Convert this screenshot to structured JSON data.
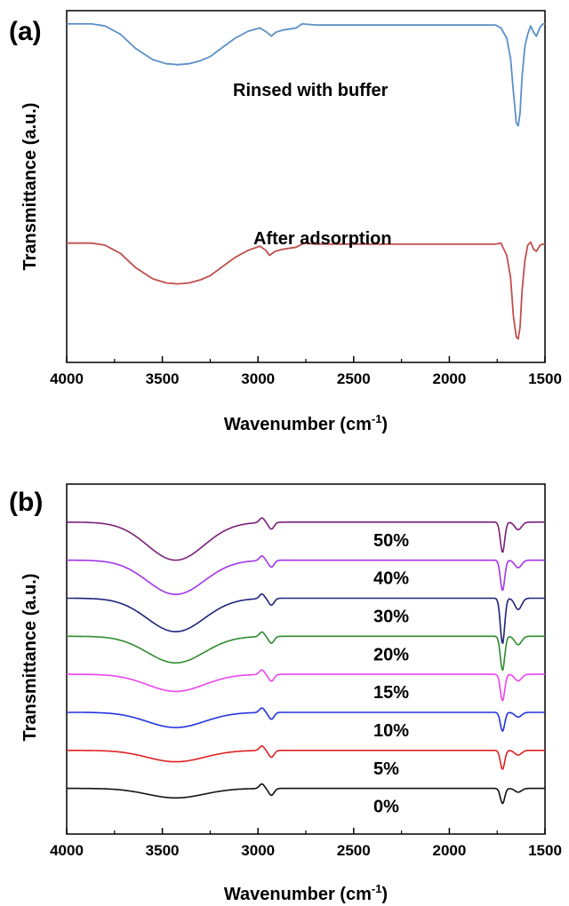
{
  "chart_data": [
    {
      "type": "line",
      "panel_label": "(a)",
      "xlabel": "Wavenumber (cm",
      "xlabel_sup": "-1",
      "xlabel_close": ")",
      "ylabel": "Transmittance (a.u.)",
      "xlim": [
        4000,
        1500
      ],
      "x_reversed": true,
      "xticks": [
        "4000",
        "3500",
        "3000",
        "2500",
        "2000",
        "1500"
      ],
      "yticks": [],
      "grid": false,
      "legend": "none",
      "series": [
        {
          "name": "Rinsed with buffer",
          "color": "#5b8fc7",
          "offset": 2.15,
          "points": [
            [
              4000,
              0.82
            ],
            [
              3870,
              0.82
            ],
            [
              3800,
              0.8
            ],
            [
              3720,
              0.72
            ],
            [
              3640,
              0.58
            ],
            [
              3550,
              0.47
            ],
            [
              3480,
              0.43
            ],
            [
              3420,
              0.42
            ],
            [
              3360,
              0.43
            ],
            [
              3300,
              0.46
            ],
            [
              3250,
              0.5
            ],
            [
              3200,
              0.57
            ],
            [
              3120,
              0.68
            ],
            [
              3050,
              0.75
            ],
            [
              2990,
              0.78
            ],
            [
              2955,
              0.74
            ],
            [
              2930,
              0.7
            ],
            [
              2905,
              0.74
            ],
            [
              2870,
              0.76
            ],
            [
              2800,
              0.78
            ],
            [
              2770,
              0.82
            ],
            [
              2700,
              0.81
            ],
            [
              2000,
              0.81
            ],
            [
              1760,
              0.81
            ],
            [
              1730,
              0.78
            ],
            [
              1700,
              0.68
            ],
            [
              1680,
              0.48
            ],
            [
              1665,
              0.15
            ],
            [
              1650,
              -0.15
            ],
            [
              1640,
              -0.18
            ],
            [
              1630,
              -0.05
            ],
            [
              1620,
              0.3
            ],
            [
              1605,
              0.6
            ],
            [
              1590,
              0.72
            ],
            [
              1575,
              0.8
            ],
            [
              1560,
              0.74
            ],
            [
              1545,
              0.7
            ],
            [
              1525,
              0.79
            ],
            [
              1510,
              0.82
            ],
            [
              1500,
              0.82
            ]
          ]
        },
        {
          "name": "After adsorption",
          "color": "#c0504d",
          "offset": 0.0,
          "points": [
            [
              4000,
              0.82
            ],
            [
              3870,
              0.82
            ],
            [
              3800,
              0.8
            ],
            [
              3720,
              0.72
            ],
            [
              3640,
              0.58
            ],
            [
              3550,
              0.47
            ],
            [
              3480,
              0.43
            ],
            [
              3420,
              0.42
            ],
            [
              3360,
              0.43
            ],
            [
              3300,
              0.46
            ],
            [
              3250,
              0.5
            ],
            [
              3200,
              0.57
            ],
            [
              3120,
              0.68
            ],
            [
              3050,
              0.75
            ],
            [
              2990,
              0.79
            ],
            [
              2960,
              0.75
            ],
            [
              2940,
              0.7
            ],
            [
              2910,
              0.74
            ],
            [
              2870,
              0.76
            ],
            [
              2800,
              0.78
            ],
            [
              2760,
              0.82
            ],
            [
              2700,
              0.81
            ],
            [
              2000,
              0.81
            ],
            [
              1760,
              0.81
            ],
            [
              1730,
              0.82
            ],
            [
              1700,
              0.7
            ],
            [
              1680,
              0.48
            ],
            [
              1665,
              0.1
            ],
            [
              1650,
              -0.1
            ],
            [
              1640,
              -0.12
            ],
            [
              1630,
              0.0
            ],
            [
              1620,
              0.35
            ],
            [
              1605,
              0.65
            ],
            [
              1590,
              0.8
            ],
            [
              1575,
              0.83
            ],
            [
              1560,
              0.76
            ],
            [
              1545,
              0.74
            ],
            [
              1525,
              0.8
            ],
            [
              1510,
              0.81
            ],
            [
              1500,
              0.81
            ]
          ]
        }
      ]
    },
    {
      "type": "line",
      "panel_label": "(b)",
      "xlabel": "Wavenumber (cm",
      "xlabel_sup": "-1",
      "xlabel_close": ")",
      "ylabel": "Transmittance (a.u.)",
      "xlim": [
        4000,
        1500
      ],
      "x_reversed": true,
      "xticks": [
        "4000",
        "3500",
        "3000",
        "2500",
        "2000",
        "1500"
      ],
      "yticks": [],
      "grid": false,
      "legend": "none",
      "series": [
        {
          "name": "50%",
          "color": "#7b1f7a",
          "baseline": 7.2,
          "band_depth": 1.0,
          "peak_depth": 0.8
        },
        {
          "name": "40%",
          "color": "#a335e8",
          "baseline": 6.2,
          "band_depth": 0.9,
          "peak_depth": 0.8
        },
        {
          "name": "30%",
          "color": "#1f237a",
          "baseline": 5.2,
          "band_depth": 0.88,
          "peak_depth": 1.2
        },
        {
          "name": "20%",
          "color": "#2e8b2e",
          "baseline": 4.2,
          "band_depth": 0.7,
          "peak_depth": 0.9
        },
        {
          "name": "15%",
          "color": "#ee44ee",
          "baseline": 3.2,
          "band_depth": 0.45,
          "peak_depth": 0.7
        },
        {
          "name": "10%",
          "color": "#2233dd",
          "baseline": 2.2,
          "band_depth": 0.4,
          "peak_depth": 0.5
        },
        {
          "name": "5%",
          "color": "#e02020",
          "baseline": 1.2,
          "band_depth": 0.3,
          "peak_depth": 0.5
        },
        {
          "name": "0%",
          "color": "#111111",
          "baseline": 0.2,
          "band_depth": 0.25,
          "peak_depth": 0.4
        }
      ]
    }
  ]
}
